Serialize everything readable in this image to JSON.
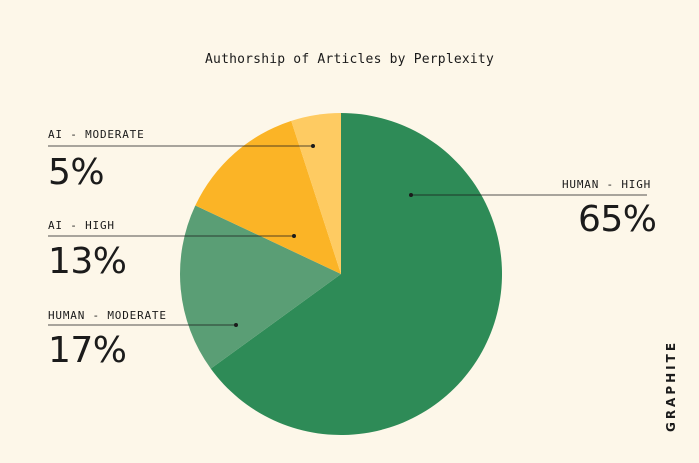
{
  "chart_data": {
    "type": "pie",
    "title": "Authorship of Articles by Perplexity",
    "slices": [
      {
        "label": "HUMAN - HIGH",
        "value": 65,
        "display": "65%",
        "color": "#2e8b57"
      },
      {
        "label": "HUMAN - MODERATE",
        "value": 17,
        "display": "17%",
        "color": "#5a9e75"
      },
      {
        "label": "AI - HIGH",
        "value": 13,
        "display": "13%",
        "color": "#fbb426"
      },
      {
        "label": "AI - MODERATE",
        "value": 5,
        "display": "5%",
        "color": "#fecb62"
      }
    ],
    "start_angle_deg": 0,
    "direction": "clockwise"
  },
  "brand": "GRAPHITE"
}
